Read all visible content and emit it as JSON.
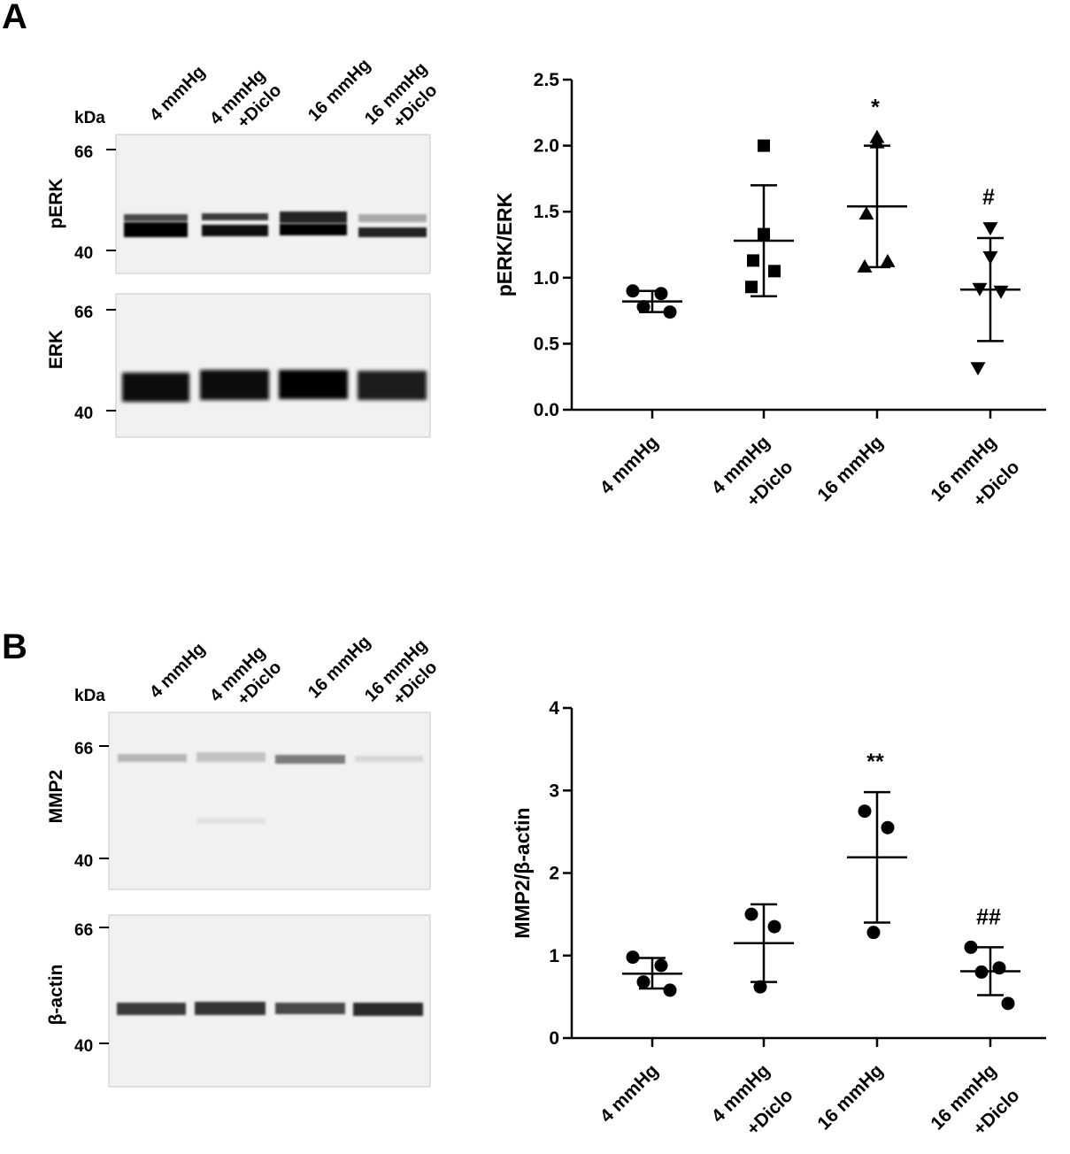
{
  "panels": {
    "A": {
      "letter": "A",
      "kda_label": "kDa",
      "lane_labels": [
        [
          "4 mmHg"
        ],
        [
          "4 mmHg",
          "+Diclo"
        ],
        [
          "16 mmHg"
        ],
        [
          "16 mmHg",
          "+Diclo"
        ]
      ],
      "blots": [
        {
          "name": "pERK",
          "markers": [
            "66",
            "40"
          ]
        },
        {
          "name": "ERK",
          "markers": [
            "66",
            "40"
          ]
        }
      ]
    },
    "B": {
      "letter": "B",
      "kda_label": "kDa",
      "lane_labels": [
        [
          "4 mmHg"
        ],
        [
          "4 mmHg",
          "+Diclo"
        ],
        [
          "16 mmHg"
        ],
        [
          "16 mmHg",
          "+Diclo"
        ]
      ],
      "blots": [
        {
          "name": "MMP2",
          "markers": [
            "66",
            "40"
          ]
        },
        {
          "name": "β-actin",
          "markers": [
            "66",
            "40"
          ]
        }
      ]
    }
  },
  "chart_data": [
    {
      "type": "scatter",
      "panel": "A",
      "ylabel": "pERK/ERK",
      "xlabel": "",
      "ylim": [
        0,
        2.5
      ],
      "yticks": [
        "0.0",
        "0.5",
        "1.0",
        "1.5",
        "2.0",
        "2.5"
      ],
      "categories": [
        [
          "4 mmHg"
        ],
        [
          "4 mmHg",
          "+Diclo"
        ],
        [
          "16 mmHg"
        ],
        [
          "16 mmHg",
          "+Diclo"
        ]
      ],
      "groups": [
        {
          "marker": "circle",
          "points": [
            0.9,
            0.88,
            0.78,
            0.74
          ],
          "mean": 0.82,
          "sd_low": 0.74,
          "sd_high": 0.9,
          "annotation": ""
        },
        {
          "marker": "square",
          "points": [
            2.0,
            1.33,
            1.13,
            1.05,
            0.93
          ],
          "mean": 1.28,
          "sd_low": 0.86,
          "sd_high": 1.7,
          "annotation": ""
        },
        {
          "marker": "triangle-up",
          "points": [
            2.06,
            2.02,
            1.48,
            1.12,
            1.08
          ],
          "mean": 1.54,
          "sd_low": 1.08,
          "sd_high": 2.0,
          "annotation": "*"
        },
        {
          "marker": "triangle-down",
          "points": [
            1.38,
            1.16,
            0.92,
            0.9,
            0.32
          ],
          "mean": 0.91,
          "sd_low": 0.52,
          "sd_high": 1.3,
          "annotation": "#"
        }
      ]
    },
    {
      "type": "scatter",
      "panel": "B",
      "ylabel": "MMP2/β-actin",
      "xlabel": "",
      "ylim": [
        0,
        4
      ],
      "yticks": [
        "0",
        "1",
        "2",
        "3",
        "4"
      ],
      "categories": [
        [
          "4 mmHg"
        ],
        [
          "4 mmHg",
          "+Diclo"
        ],
        [
          "16 mmHg"
        ],
        [
          "16 mmHg",
          "+Diclo"
        ]
      ],
      "groups": [
        {
          "marker": "circle",
          "points": [
            0.98,
            0.88,
            0.68,
            0.58
          ],
          "mean": 0.78,
          "sd_low": 0.6,
          "sd_high": 0.97,
          "annotation": ""
        },
        {
          "marker": "circle",
          "points": [
            1.5,
            1.35,
            0.62
          ],
          "mean": 1.15,
          "sd_low": 0.68,
          "sd_high": 1.62,
          "annotation": ""
        },
        {
          "marker": "circle",
          "points": [
            2.75,
            2.55,
            1.28
          ],
          "mean": 2.19,
          "sd_low": 1.4,
          "sd_high": 2.98,
          "annotation": "**"
        },
        {
          "marker": "circle",
          "points": [
            1.1,
            0.85,
            0.8,
            0.42
          ],
          "mean": 0.81,
          "sd_low": 0.52,
          "sd_high": 1.1,
          "annotation": "##"
        }
      ]
    }
  ]
}
